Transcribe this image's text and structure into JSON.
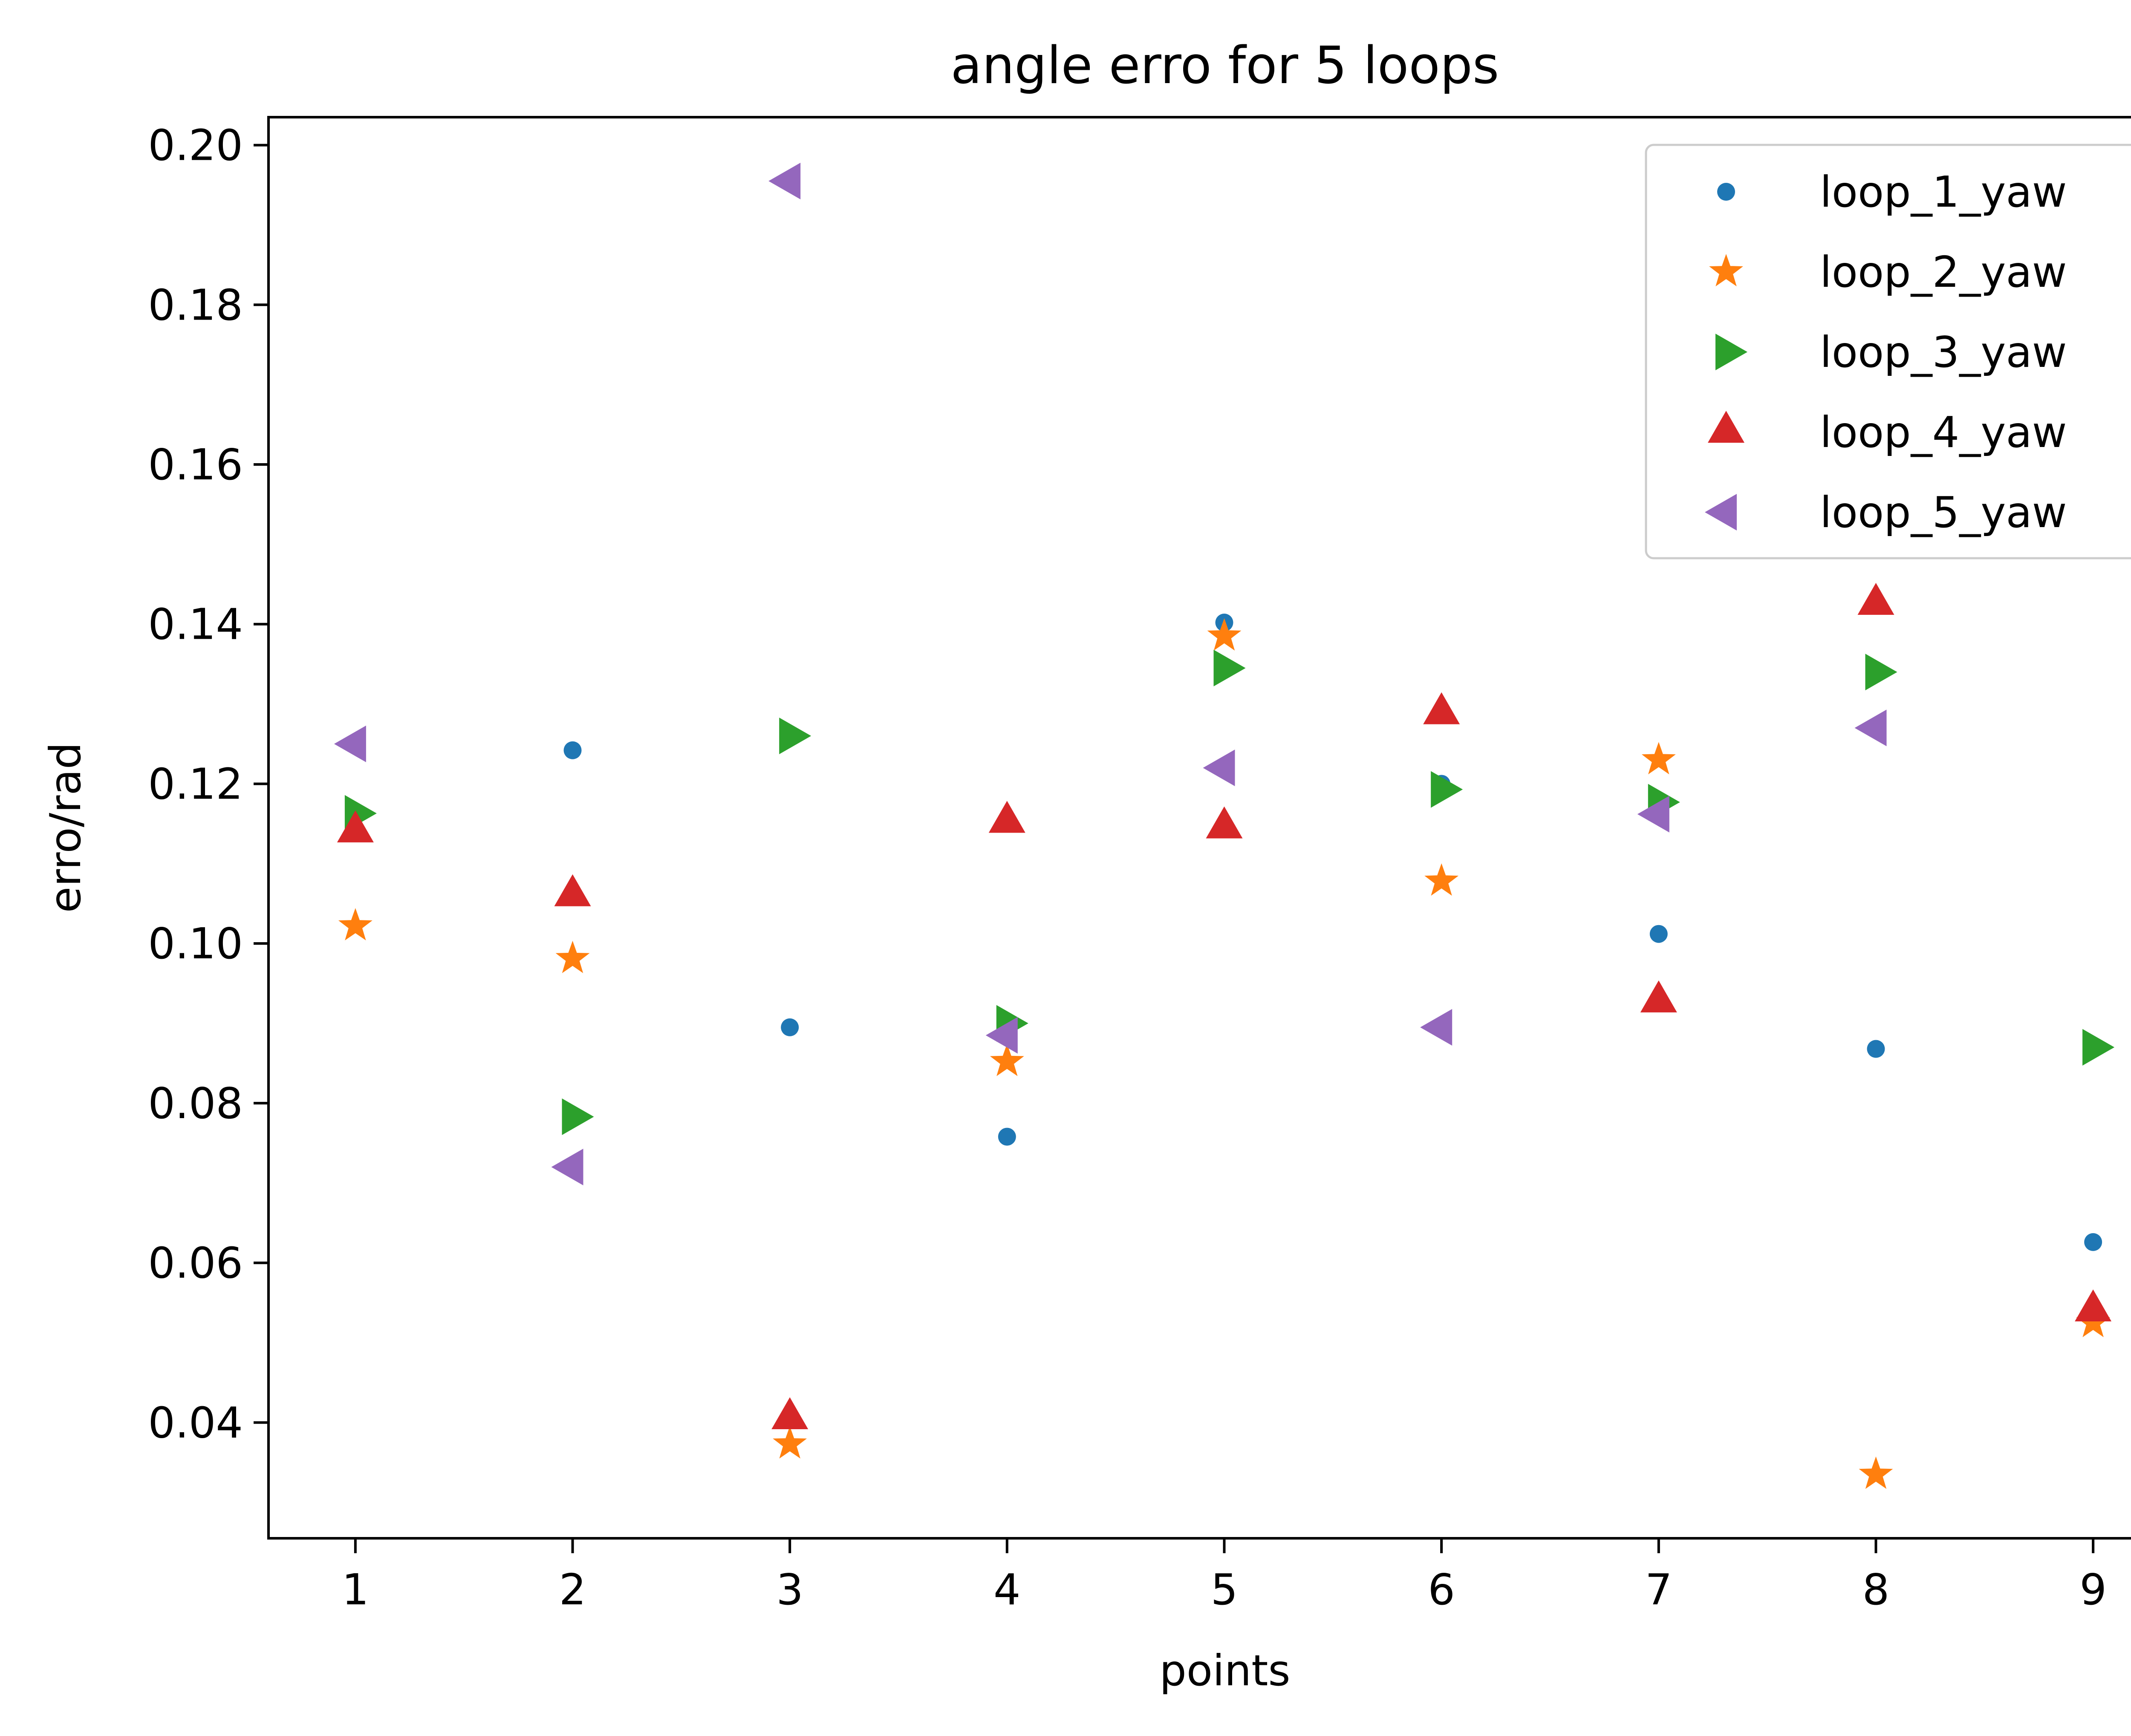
{
  "chart_data": {
    "type": "scatter",
    "title": "angle erro for 5 loops",
    "xlabel": "points",
    "ylabel": "erro/rad",
    "x": [
      1,
      2,
      3,
      4,
      5,
      6,
      7,
      8,
      9
    ],
    "xlim": [
      0.6,
      9.4
    ],
    "ylim": [
      0.0255,
      0.2035
    ],
    "xticks": [
      1,
      2,
      3,
      4,
      5,
      6,
      7,
      8,
      9
    ],
    "yticks": [
      0.04,
      0.06,
      0.08,
      0.1,
      0.12,
      0.14,
      0.16,
      0.18,
      0.2
    ],
    "ytick_labels": [
      "0.04",
      "0.06",
      "0.08",
      "0.10",
      "0.12",
      "0.14",
      "0.16",
      "0.18",
      "0.20"
    ],
    "grid": false,
    "legend_position": "top-right",
    "series": [
      {
        "name": "loop_1_yaw",
        "marker": "point",
        "color": "#1f77b4",
        "values": [
          null,
          0.1242,
          0.0895,
          0.0758,
          0.1402,
          0.12,
          0.1012,
          0.0868,
          0.0626
        ]
      },
      {
        "name": "loop_2_yaw",
        "marker": "star",
        "color": "#ff7f0e",
        "values": [
          0.1022,
          0.0981,
          0.0373,
          0.0852,
          0.1385,
          0.1078,
          0.123,
          0.0335,
          0.0525
        ]
      },
      {
        "name": "loop_3_yaw",
        "marker": "triangle-right",
        "color": "#2ca02c",
        "values": [
          0.1163,
          0.0783,
          0.126,
          0.09,
          0.1345,
          0.1193,
          0.1177,
          0.134,
          0.087
        ]
      },
      {
        "name": "loop_4_yaw",
        "marker": "triangle-up",
        "color": "#d62728",
        "values": [
          0.114,
          0.106,
          0.0405,
          0.1152,
          0.1145,
          0.1288,
          0.0927,
          0.1425,
          0.054
        ]
      },
      {
        "name": "loop_5_yaw",
        "marker": "triangle-left",
        "color": "#9467bd",
        "values": [
          0.125,
          0.072,
          0.1955,
          0.0885,
          0.122,
          0.0895,
          0.1162,
          0.127,
          null
        ]
      }
    ]
  }
}
